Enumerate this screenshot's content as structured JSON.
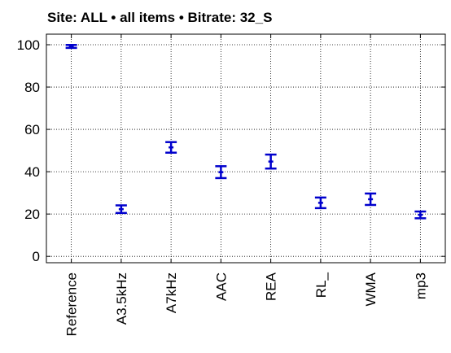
{
  "chart_data": {
    "type": "scatter",
    "title": "Site: ALL • all items • Bitrate: 32_S",
    "xlabel": "",
    "ylabel": "",
    "categories": [
      "Reference",
      "A3.5kHz",
      "A7kHz",
      "AAC",
      "REA",
      "RL_",
      "WMA",
      "mp3"
    ],
    "series": [
      {
        "mean": [
          99.2,
          22.3,
          51.5,
          39.8,
          44.8,
          25.3,
          27.0,
          19.6
        ],
        "lower": [
          98.5,
          20.5,
          49.0,
          37.0,
          41.5,
          22.8,
          24.3,
          18.0
        ],
        "upper": [
          99.9,
          24.1,
          54.0,
          42.6,
          48.1,
          27.8,
          29.7,
          21.2
        ]
      }
    ],
    "ylim": [
      -3,
      105
    ],
    "yticks": [
      0,
      20,
      40,
      60,
      80,
      100
    ],
    "grid": true,
    "errorbar_color": "#0000cc"
  }
}
